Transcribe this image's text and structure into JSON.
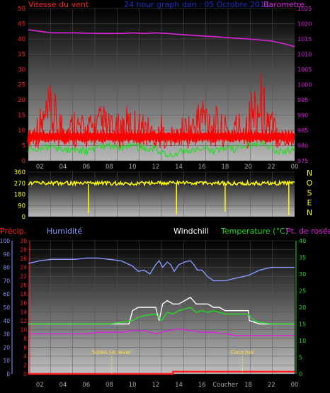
{
  "header": {
    "left": "Vitesse du vent",
    "center": "24 hour graph dan : 05 Octobre 2011",
    "right": "Barometre"
  },
  "colors": {
    "background": "#000000",
    "wind_speed": "#ff0000",
    "wind_avg": "#22dd22",
    "barometer": "#dd22dd",
    "wind_dir": "#ffff00",
    "humidity": "#8899ff",
    "windchill": "#ffffff",
    "temperature": "#22dd22",
    "dewpoint": "#dd22dd",
    "precip": "#ff2222",
    "sun_marker": "#ffdd44"
  },
  "chart_data": [
    {
      "type": "line",
      "title": "24 hour graph dan : 05 Octobre 2011",
      "ylabel": "Vitesse du vent",
      "y2label": "Barometre",
      "x_ticks": [
        "02",
        "04",
        "06",
        "08",
        "10",
        "12",
        "14",
        "16",
        "18",
        "20",
        "22",
        "00"
      ],
      "xlim": [
        1,
        24
      ],
      "ylim": [
        0,
        50
      ],
      "y_ticks": [
        "0",
        "5",
        "10",
        "15",
        "20",
        "25",
        "30",
        "35",
        "40",
        "45",
        "50"
      ],
      "y2lim": [
        975,
        1025
      ],
      "y2_ticks": [
        "975",
        "980",
        "985",
        "990",
        "995",
        "1000",
        "1005",
        "1010",
        "1015",
        "1020",
        "1025"
      ],
      "series": [
        {
          "name": "Barometre",
          "axis": "right",
          "x": [
            1,
            3,
            5,
            7,
            9,
            10,
            11,
            12,
            13,
            14,
            16,
            18,
            20,
            22,
            23,
            24
          ],
          "values": [
            1018,
            1017,
            1017,
            1016.8,
            1016.8,
            1017,
            1016.8,
            1017,
            1016.8,
            1016.5,
            1016,
            1015.5,
            1015,
            1014.3,
            1013.5,
            1012.5
          ]
        },
        {
          "name": "Vitesse du vent",
          "axis": "left",
          "x": [
            1,
            1.5,
            2,
            2.5,
            3,
            3.5,
            4,
            4.5,
            5,
            5.5,
            6,
            6.5,
            7,
            7.5,
            8,
            8.5,
            9,
            9.5,
            10,
            10.5,
            11,
            11.5,
            12,
            12.5,
            13,
            13.5,
            14,
            14.5,
            15,
            15.5,
            16,
            16.5,
            17,
            17.5,
            18,
            18.5,
            19,
            19.5,
            20,
            20.5,
            21,
            21.5,
            22,
            22.5,
            23,
            23.5,
            24
          ],
          "values": [
            10,
            14,
            18,
            22,
            26,
            20,
            17,
            15,
            19,
            16,
            14,
            17,
            18,
            19,
            16,
            14,
            17,
            18,
            18,
            17,
            16,
            15,
            11,
            15,
            9,
            12,
            12,
            16,
            16,
            19,
            25,
            22,
            20,
            16,
            15,
            14,
            17,
            18,
            20,
            28,
            32,
            24,
            18,
            14,
            10,
            9,
            12
          ]
        },
        {
          "name": "Vent moyen",
          "axis": "left",
          "x": [
            1,
            2,
            3,
            4,
            5,
            6,
            7,
            8,
            9,
            10,
            11,
            12,
            13,
            14,
            15,
            16,
            17,
            18,
            19,
            20,
            21,
            22,
            23,
            24
          ],
          "values": [
            4,
            4,
            5,
            3,
            4,
            3,
            4,
            5,
            4,
            5,
            4,
            4,
            2,
            3,
            3,
            4,
            3,
            4,
            4,
            5,
            6,
            4,
            3,
            4
          ]
        }
      ]
    },
    {
      "type": "scatter",
      "xlim": [
        1,
        24
      ],
      "ylim": [
        0,
        360
      ],
      "y_ticks": [
        "0",
        "90",
        "180",
        "270",
        "360"
      ],
      "right_labels": [
        "N",
        "O",
        "S",
        "E",
        "N"
      ],
      "series": [
        {
          "name": "Direction",
          "x": [
            1,
            1.5,
            2,
            2.5,
            3,
            3.5,
            4,
            4.5,
            5,
            5.5,
            6,
            6.2,
            6.5,
            7,
            7.5,
            8,
            8.5,
            9,
            9.5,
            10,
            10.5,
            11,
            11.5,
            12,
            12.5,
            13,
            13.5,
            13.8,
            14,
            14.5,
            15,
            15.5,
            16,
            16.5,
            17,
            17.5,
            18,
            18.5,
            19,
            19.5,
            20,
            20.5,
            21,
            21.5,
            22,
            22.5,
            23,
            23.5,
            24
          ],
          "values": [
            270,
            275,
            268,
            280,
            265,
            270,
            278,
            262,
            270,
            275,
            268,
            30,
            272,
            270,
            265,
            275,
            270,
            268,
            272,
            260,
            275,
            270,
            265,
            278,
            270,
            268,
            272,
            20,
            275,
            270,
            268,
            262,
            275,
            270,
            272,
            268,
            40,
            270,
            275,
            265,
            272,
            270,
            268,
            275,
            270,
            272,
            265,
            10,
            300
          ]
        }
      ]
    },
    {
      "type": "line",
      "x_ticks": [
        "02",
        "04",
        "06",
        "08",
        "10",
        "12",
        "14",
        "16",
        "Coucher",
        "18",
        "22",
        "00"
      ],
      "xlim": [
        1,
        24
      ],
      "ylim_precip": [
        0,
        30
      ],
      "precip_ticks": [
        "0",
        "2",
        "4",
        "6",
        "8",
        "10",
        "12",
        "14",
        "16",
        "18",
        "20",
        "22",
        "24",
        "26",
        "28",
        "30"
      ],
      "ylim_humidity": [
        0,
        100
      ],
      "humidity_ticks": [
        "0",
        "10",
        "20",
        "30",
        "40",
        "50",
        "60",
        "70",
        "80",
        "90",
        "100"
      ],
      "ylim_temp": [
        0,
        40
      ],
      "temp_ticks": [
        "0",
        "5",
        "10",
        "15",
        "20",
        "25",
        "30",
        "35",
        "40"
      ],
      "legend": [
        "Précip.",
        "Humidité",
        "Windchill",
        "Temperature (°C)",
        "Pt. de rosée"
      ],
      "annotations": [
        {
          "x": 8.2,
          "label": "Soleil se lever"
        },
        {
          "x": 19.5,
          "label": "Coucher"
        }
      ],
      "series": [
        {
          "name": "Humidité",
          "axis": "humidity",
          "x": [
            1,
            2,
            3,
            4,
            5,
            6,
            7,
            8,
            9,
            10,
            10.5,
            11,
            11.5,
            12,
            12.3,
            12.6,
            13,
            13.3,
            13.6,
            14,
            14.5,
            15,
            15.3,
            15.6,
            16,
            16.5,
            17,
            17.5,
            18,
            19,
            20,
            21,
            22,
            23,
            24
          ],
          "values": [
            83,
            85,
            86,
            86,
            86,
            87,
            87,
            86,
            85,
            81,
            77,
            78,
            75,
            82,
            85,
            80,
            84,
            82,
            77,
            82,
            84,
            85,
            82,
            78,
            78,
            73,
            70,
            70,
            70,
            72,
            74,
            78,
            80,
            80,
            80
          ]
        },
        {
          "name": "Windchill",
          "axis": "temp",
          "x": [
            1,
            2,
            3,
            4,
            5,
            6,
            7,
            8,
            9,
            9.7,
            10,
            10.5,
            11,
            11.5,
            12,
            12.3,
            12.6,
            13,
            13.5,
            14,
            14.5,
            15,
            15.5,
            16,
            16.5,
            17,
            17.5,
            18,
            19,
            20,
            20.1,
            21,
            22,
            23,
            24
          ],
          "values": [
            15,
            15,
            15,
            15,
            15,
            15,
            15,
            15,
            15,
            15,
            19,
            20,
            20,
            20,
            20,
            16,
            21,
            22,
            21,
            21,
            22,
            23,
            21,
            21,
            21,
            20,
            20,
            19,
            19,
            19,
            16,
            15,
            15,
            15,
            15
          ]
        },
        {
          "name": "Temperature",
          "axis": "temp",
          "x": [
            1,
            2,
            3,
            4,
            5,
            6,
            7,
            8,
            9,
            10,
            10.5,
            11,
            12,
            12.5,
            13,
            13.5,
            14,
            14.5,
            15,
            15.5,
            16,
            16.5,
            17,
            18,
            19,
            20,
            20.5,
            21,
            22,
            23,
            24
          ],
          "values": [
            15,
            15,
            15,
            15,
            15,
            15,
            15,
            15,
            15.5,
            16,
            17,
            17.5,
            18,
            16,
            18.5,
            18,
            19,
            19.5,
            20,
            18.5,
            19,
            18.5,
            19,
            18,
            18,
            18,
            16,
            15.5,
            15,
            15,
            15
          ]
        },
        {
          "name": "Pt. de rosée",
          "axis": "temp",
          "x": [
            1,
            2,
            3,
            4,
            5,
            6,
            7,
            8,
            9,
            10,
            11,
            12,
            13,
            14,
            15,
            16,
            17,
            18,
            19,
            20,
            21,
            22,
            23,
            24
          ],
          "values": [
            12,
            12,
            12,
            12,
            12,
            12,
            12.5,
            12.5,
            12.5,
            13,
            13,
            12,
            13,
            13.5,
            13,
            12.5,
            12.5,
            12,
            11.5,
            11.5,
            11.5,
            11.5,
            11.5,
            11.5
          ]
        },
        {
          "name": "Précip.",
          "axis": "precip",
          "x": [
            1,
            13.5,
            13.5,
            24
          ],
          "values": [
            0,
            0,
            0.5,
            0.5
          ]
        }
      ]
    }
  ]
}
